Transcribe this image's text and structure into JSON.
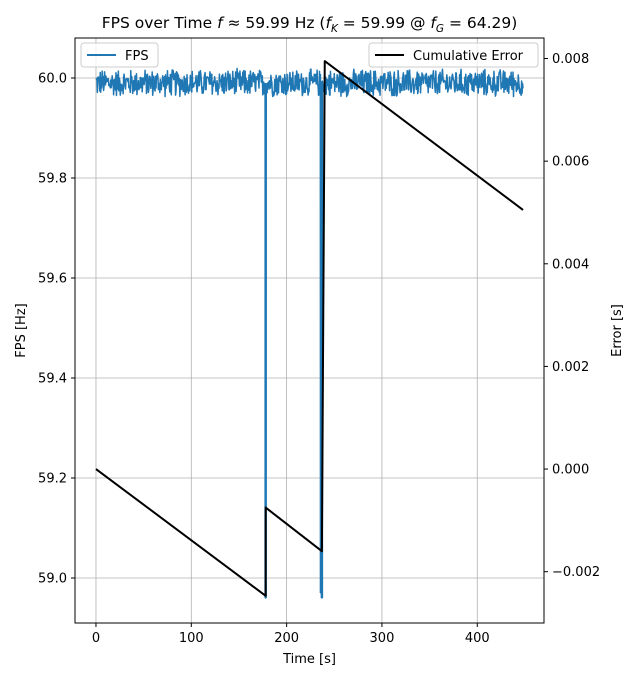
{
  "chart_data": {
    "type": "line",
    "title": "FPS over Time f ≈ 59.99 Hz (f_K = 59.99 @ f_G = 64.29)",
    "title_parts": {
      "prefix": "FPS over Time ",
      "f": "f",
      "approx": " ≈ 59.99 Hz (",
      "fk": "f",
      "fk_sub": "K",
      "mid": " = 59.99 @ ",
      "fg": "f",
      "fg_sub": "G",
      "suffix": " = 64.29)"
    },
    "xlabel": "Time [s]",
    "ylabel_left": "FPS [Hz]",
    "ylabel_right": "Error [s]",
    "xlim": [
      -22,
      470
    ],
    "ylim_left": [
      58.91,
      60.08
    ],
    "ylim_right": [
      -0.003,
      0.0084
    ],
    "x_ticks": [
      0,
      100,
      200,
      300,
      400
    ],
    "x_tick_labels": [
      "0",
      "100",
      "200",
      "300",
      "400"
    ],
    "y_left_ticks": [
      59.0,
      59.2,
      59.4,
      59.6,
      59.8,
      60.0
    ],
    "y_left_tick_labels": [
      "59.0",
      "59.2",
      "59.4",
      "59.6",
      "59.8",
      "60.0"
    ],
    "y_right_ticks": [
      -0.002,
      0.0,
      0.002,
      0.004,
      0.006,
      0.008
    ],
    "y_right_tick_labels": [
      "−0.002",
      "0.000",
      "0.002",
      "0.004",
      "0.006",
      "0.008"
    ],
    "grid": true,
    "legend_left": {
      "placement": "top-left",
      "entries": [
        "FPS"
      ]
    },
    "legend_right": {
      "placement": "top-right",
      "entries": [
        "Cumulative Error"
      ]
    },
    "series": [
      {
        "name": "FPS",
        "axis": "left",
        "color": "#1f77b4",
        "baseline": {
          "x_range": [
            0,
            448
          ],
          "center": 59.99,
          "low": 59.96,
          "high": 60.02
        },
        "dips": [
          {
            "x": 178,
            "value": 58.96
          },
          {
            "x": 236,
            "value": 58.97
          },
          {
            "x": 237,
            "value": 58.96
          }
        ]
      },
      {
        "name": "Cumulative Error",
        "axis": "right",
        "color": "#000000",
        "x": [
          0,
          178,
          178,
          237,
          240,
          448
        ],
        "values": [
          0.0,
          -0.00247,
          -0.00075,
          -0.0016,
          0.00795,
          0.00505
        ]
      }
    ]
  }
}
